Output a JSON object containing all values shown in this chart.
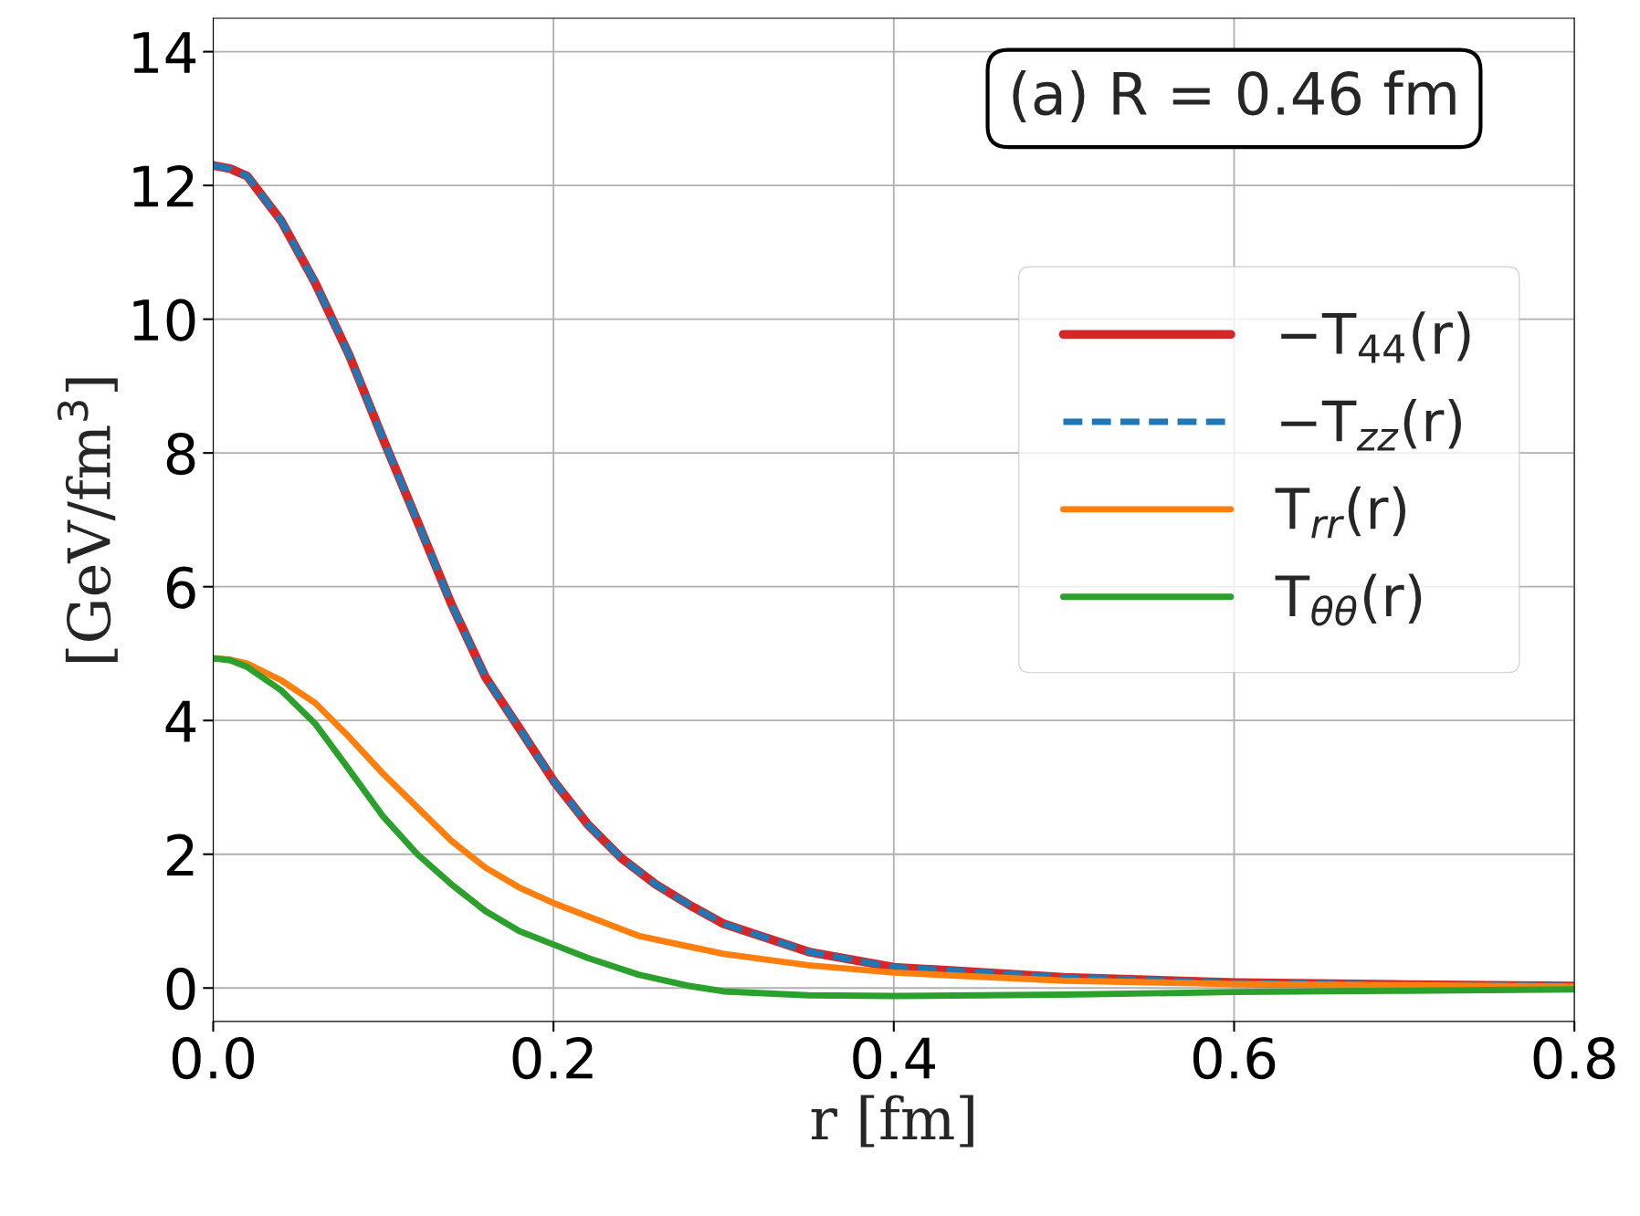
{
  "chart_data": {
    "type": "line",
    "xlabel": "r [fm]",
    "ylabel": "[GeV/fm$^{3}$]",
    "annotations": [
      "(a) R = 0.46 fm"
    ],
    "xlim": [
      0,
      0.8
    ],
    "ylim": [
      -0.5,
      14.5
    ],
    "xticks": [
      {
        "value": 0,
        "label": "0.0"
      },
      {
        "value": 0.2,
        "label": "0.2"
      },
      {
        "value": 0.4,
        "label": "0.4"
      },
      {
        "value": 0.6,
        "label": "0.6"
      },
      {
        "value": 0.8,
        "label": "0.8"
      }
    ],
    "yticks": [
      0,
      2,
      4,
      6,
      8,
      10,
      12,
      14
    ],
    "grid": true,
    "legend": "right",
    "series": [
      {
        "name": "−T$_{44}$(r)",
        "color": "#d62728",
        "line_style": "solid",
        "x": [
          0,
          0.01,
          0.02,
          0.04,
          0.06,
          0.08,
          0.1,
          0.12,
          0.14,
          0.16,
          0.18,
          0.2,
          0.22,
          0.24,
          0.26,
          0.28,
          0.3,
          0.35,
          0.4,
          0.5,
          0.6,
          0.7,
          0.8
        ],
        "values": [
          12.3,
          12.25,
          12.14,
          11.47,
          10.54,
          9.46,
          8.2,
          6.98,
          5.74,
          4.65,
          3.88,
          3.1,
          2.45,
          1.94,
          1.55,
          1.24,
          0.96,
          0.54,
          0.31,
          0.16,
          0.08,
          0.05,
          0.03
        ]
      },
      {
        "name": "−T$_{zz}$(r)",
        "color": "#1f77b4",
        "line_style": "dashed",
        "x": [
          0,
          0.01,
          0.02,
          0.04,
          0.06,
          0.08,
          0.1,
          0.12,
          0.14,
          0.16,
          0.18,
          0.2,
          0.22,
          0.24,
          0.26,
          0.28,
          0.3,
          0.35,
          0.4,
          0.5,
          0.6,
          0.7,
          0.8
        ],
        "values": [
          12.3,
          12.25,
          12.14,
          11.47,
          10.54,
          9.46,
          8.2,
          6.98,
          5.74,
          4.65,
          3.88,
          3.1,
          2.45,
          1.94,
          1.55,
          1.24,
          0.96,
          0.54,
          0.31,
          0.16,
          0.08,
          0.05,
          0.03
        ]
      },
      {
        "name": "T$_{rr}$(r)",
        "color": "#ff7f0e",
        "line_style": "solid",
        "x": [
          0,
          0.01,
          0.02,
          0.04,
          0.06,
          0.08,
          0.1,
          0.12,
          0.14,
          0.16,
          0.18,
          0.2,
          0.25,
          0.3,
          0.35,
          0.4,
          0.5,
          0.6,
          0.7,
          0.8
        ],
        "values": [
          4.93,
          4.91,
          4.85,
          4.6,
          4.26,
          3.75,
          3.2,
          2.7,
          2.2,
          1.8,
          1.5,
          1.27,
          0.78,
          0.51,
          0.34,
          0.23,
          0.11,
          0.06,
          0.04,
          0.02
        ]
      },
      {
        "name": "T$_{θθ}$(r)",
        "color": "#2ca02c",
        "line_style": "solid",
        "x": [
          0,
          0.01,
          0.02,
          0.04,
          0.06,
          0.08,
          0.1,
          0.12,
          0.14,
          0.16,
          0.18,
          0.2,
          0.22,
          0.25,
          0.28,
          0.3,
          0.35,
          0.4,
          0.5,
          0.6,
          0.7,
          0.8
        ],
        "values": [
          4.93,
          4.9,
          4.8,
          4.45,
          3.95,
          3.26,
          2.56,
          2.0,
          1.55,
          1.15,
          0.85,
          0.65,
          0.45,
          0.2,
          0.03,
          -0.05,
          -0.11,
          -0.12,
          -0.1,
          -0.06,
          -0.04,
          -0.02
        ]
      }
    ]
  }
}
